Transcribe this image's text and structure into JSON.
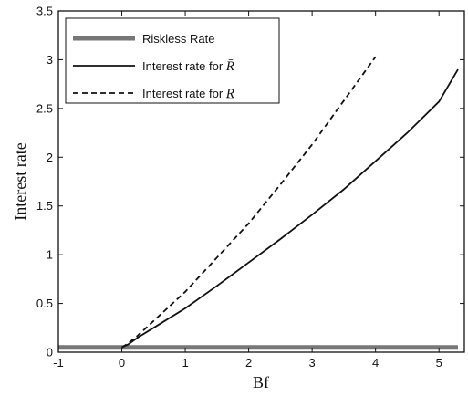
{
  "chart_data": {
    "type": "line",
    "xlabel": "Bf",
    "ylabel": "Interest rate",
    "xlim": [
      -1,
      5.4
    ],
    "ylim": [
      0,
      3.5
    ],
    "xticks": [
      -1,
      0,
      1,
      2,
      3,
      4,
      5
    ],
    "yticks": [
      0,
      0.5,
      1,
      1.5,
      2,
      2.5,
      3,
      3.5
    ],
    "xtick_labels": [
      "-1",
      "0",
      "1",
      "2",
      "3",
      "4",
      "5"
    ],
    "ytick_labels": [
      "0",
      "0.5",
      "1",
      "1.5",
      "2",
      "2.5",
      "3",
      "3.5"
    ],
    "grid": false,
    "legend_position": "top-left",
    "series": [
      {
        "name": "Riskless Rate",
        "style": "thick",
        "color": "#777777",
        "x": [
          -1,
          5.3
        ],
        "y": [
          0.05,
          0.05
        ]
      },
      {
        "name": "Interest rate for R̄",
        "legend_prefix": "Interest rate for ",
        "legend_symbol": "R̄",
        "style": "solid",
        "color": "#111111",
        "x": [
          0,
          0.1,
          0.25,
          0.5,
          1,
          1.5,
          2,
          2.5,
          3,
          3.5,
          4,
          4.5,
          5,
          5.3
        ],
        "y": [
          0.05,
          0.08,
          0.15,
          0.25,
          0.45,
          0.68,
          0.92,
          1.16,
          1.41,
          1.67,
          1.96,
          2.25,
          2.57,
          2.9
        ]
      },
      {
        "name": "Interest rate for R̲",
        "legend_prefix": "Interest rate for ",
        "legend_symbol": "R̲",
        "style": "dashed",
        "color": "#111111",
        "x": [
          0,
          0.1,
          0.25,
          0.5,
          1,
          1.5,
          2,
          2.5,
          3,
          3.5,
          4
        ],
        "y": [
          0.05,
          0.09,
          0.17,
          0.32,
          0.62,
          0.97,
          1.32,
          1.72,
          2.13,
          2.58,
          3.03
        ]
      }
    ]
  }
}
